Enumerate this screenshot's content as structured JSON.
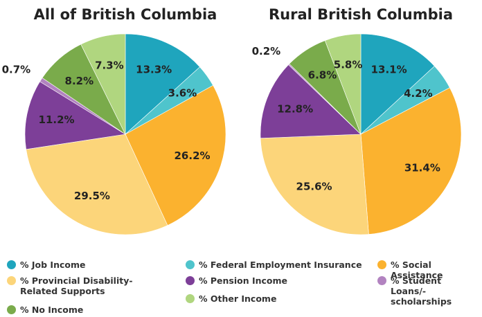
{
  "chart_data": [
    {
      "type": "pie",
      "title": "All of British Columbia",
      "categories": [
        "% Job Income",
        "% Federal Employment Insurance",
        "% Social Assistance",
        "% Provincial Disability-Related Supports",
        "% Pension Income",
        "% Student Loans/-scholarships",
        "% No Income",
        "% Other Income"
      ],
      "values": [
        13.3,
        3.6,
        26.2,
        29.5,
        11.2,
        0.7,
        8.2,
        7.3
      ],
      "value_labels": [
        "13.3%",
        "3.6%",
        "26.2%",
        "29.5%",
        "11.2%",
        "0.7%",
        "8.2%",
        "7.3%"
      ],
      "colors": [
        "#1fa5bd",
        "#4fc4cc",
        "#fbb22f",
        "#fcd57a",
        "#7d3f98",
        "#b283c0",
        "#7aab4b",
        "#b0d67f"
      ]
    },
    {
      "type": "pie",
      "title": "Rural British Columbia",
      "categories": [
        "% Job Income",
        "% Federal Employment Insurance",
        "% Social Assistance",
        "% Provincial Disability-Related Supports",
        "% Pension Income",
        "% Student Loans/-scholarships",
        "% No Income",
        "% Other Income"
      ],
      "values": [
        13.1,
        4.2,
        31.4,
        25.6,
        12.8,
        0.2,
        6.8,
        5.8
      ],
      "value_labels": [
        "13.1%",
        "4.2%",
        "31.4%",
        "25.6%",
        "12.8%",
        "0.2%",
        "6.8%",
        "5.8%"
      ],
      "colors": [
        "#1fa5bd",
        "#4fc4cc",
        "#fbb22f",
        "#fcd57a",
        "#7d3f98",
        "#b283c0",
        "#7aab4b",
        "#b0d67f"
      ]
    }
  ]
}
